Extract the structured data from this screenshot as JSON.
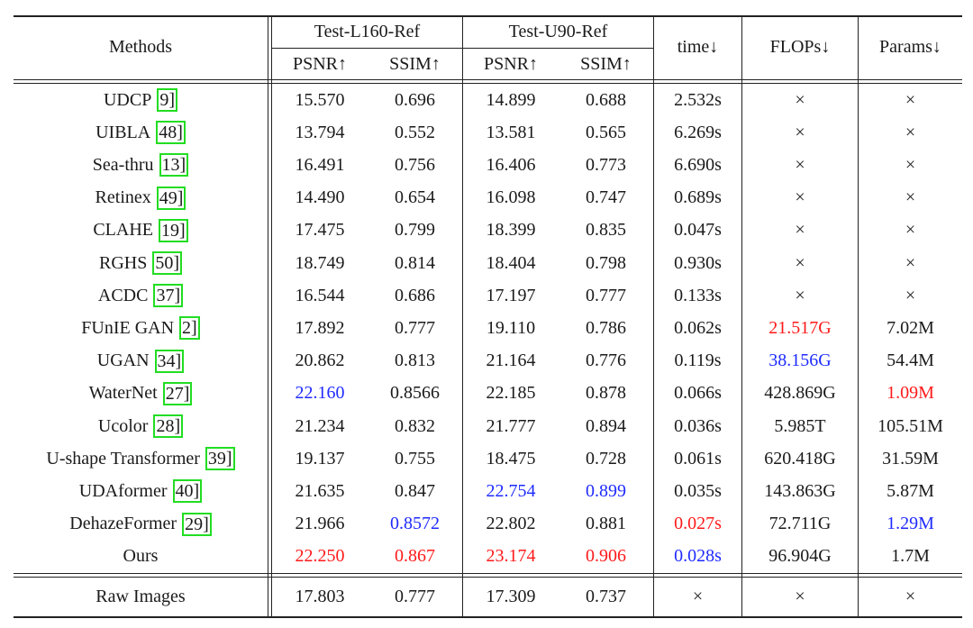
{
  "header": {
    "methods": "Methods",
    "group1": "Test-L160-Ref",
    "group2": "Test-U90-Ref",
    "psnr": "PSNR↑",
    "ssim": "SSIM↑",
    "time": "time↓",
    "flops": "FLOPs↓",
    "params": "Params↓"
  },
  "colors": {
    "best": "#ff1a1a",
    "second": "#1f2bff",
    "cite_box": "#22dd22"
  },
  "rows": [
    {
      "name": "UDCP",
      "ref": "9]",
      "cells": [
        "15.570",
        "0.696",
        "14.899",
        "0.688",
        "2.532s",
        "×",
        "×"
      ],
      "hl": [
        null,
        null,
        null,
        null,
        null,
        null,
        null
      ]
    },
    {
      "name": "UIBLA",
      "ref": "48]",
      "cells": [
        "13.794",
        "0.552",
        "13.581",
        "0.565",
        "6.269s",
        "×",
        "×"
      ],
      "hl": [
        null,
        null,
        null,
        null,
        null,
        null,
        null
      ]
    },
    {
      "name": "Sea-thru",
      "ref": "13]",
      "cells": [
        "16.491",
        "0.756",
        "16.406",
        "0.773",
        "6.690s",
        "×",
        "×"
      ],
      "hl": [
        null,
        null,
        null,
        null,
        null,
        null,
        null
      ]
    },
    {
      "name": "Retinex",
      "ref": "49]",
      "cells": [
        "14.490",
        "0.654",
        "16.098",
        "0.747",
        "0.689s",
        "×",
        "×"
      ],
      "hl": [
        null,
        null,
        null,
        null,
        null,
        null,
        null
      ]
    },
    {
      "name": "CLAHE",
      "ref": "19]",
      "cells": [
        "17.475",
        "0.799",
        "18.399",
        "0.835",
        "0.047s",
        "×",
        "×"
      ],
      "hl": [
        null,
        null,
        null,
        null,
        null,
        null,
        null
      ]
    },
    {
      "name": "RGHS",
      "ref": "50]",
      "cells": [
        "18.749",
        "0.814",
        "18.404",
        "0.798",
        "0.930s",
        "×",
        "×"
      ],
      "hl": [
        null,
        null,
        null,
        null,
        null,
        null,
        null
      ]
    },
    {
      "name": "ACDC",
      "ref": "37]",
      "cells": [
        "16.544",
        "0.686",
        "17.197",
        "0.777",
        "0.133s",
        "×",
        "×"
      ],
      "hl": [
        null,
        null,
        null,
        null,
        null,
        null,
        null
      ]
    },
    {
      "name": "FUnIE GAN",
      "ref": "2]",
      "cells": [
        "17.892",
        "0.777",
        "19.110",
        "0.786",
        "0.062s",
        "21.517G",
        "7.02M"
      ],
      "hl": [
        null,
        null,
        null,
        null,
        null,
        "best",
        null
      ]
    },
    {
      "name": "UGAN",
      "ref": "34]",
      "cells": [
        "20.862",
        "0.813",
        "21.164",
        "0.776",
        "0.119s",
        "38.156G",
        "54.4M"
      ],
      "hl": [
        null,
        null,
        null,
        null,
        null,
        "second",
        null
      ]
    },
    {
      "name": "WaterNet",
      "ref": "27]",
      "cells": [
        "22.160",
        "0.8566",
        "22.185",
        "0.878",
        "0.066s",
        "428.869G",
        "1.09M"
      ],
      "hl": [
        "second",
        null,
        null,
        null,
        null,
        null,
        "best"
      ]
    },
    {
      "name": "Ucolor",
      "ref": "28]",
      "cells": [
        "21.234",
        "0.832",
        "21.777",
        "0.894",
        "0.036s",
        "5.985T",
        "105.51M"
      ],
      "hl": [
        null,
        null,
        null,
        null,
        null,
        null,
        null
      ]
    },
    {
      "name": "U-shape Transformer",
      "ref": "39]",
      "cells": [
        "19.137",
        "0.755",
        "18.475",
        "0.728",
        "0.061s",
        "620.418G",
        "31.59M"
      ],
      "hl": [
        null,
        null,
        null,
        null,
        null,
        null,
        null
      ]
    },
    {
      "name": "UDAformer",
      "ref": "40]",
      "cells": [
        "21.635",
        "0.847",
        "22.754",
        "0.899",
        "0.035s",
        "143.863G",
        "5.87M"
      ],
      "hl": [
        null,
        null,
        "second",
        "second",
        null,
        null,
        null
      ]
    },
    {
      "name": "DehazeFormer",
      "ref": "29]",
      "cells": [
        "21.966",
        "0.8572",
        "22.802",
        "0.881",
        "0.027s",
        "72.711G",
        "1.29M"
      ],
      "hl": [
        null,
        "second",
        null,
        null,
        "best",
        null,
        "second"
      ]
    },
    {
      "name": "Ours",
      "ref": "",
      "cells": [
        "22.250",
        "0.867",
        "23.174",
        "0.906",
        "0.028s",
        "96.904G",
        "1.7M"
      ],
      "hl": [
        "best",
        "best",
        "best",
        "best",
        "second",
        null,
        null
      ]
    },
    {
      "name": "Raw Images",
      "ref": "",
      "cells": [
        "17.803",
        "0.777",
        "17.309",
        "0.737",
        "×",
        "×",
        "×"
      ],
      "hl": [
        null,
        null,
        null,
        null,
        null,
        null,
        null
      ]
    }
  ]
}
